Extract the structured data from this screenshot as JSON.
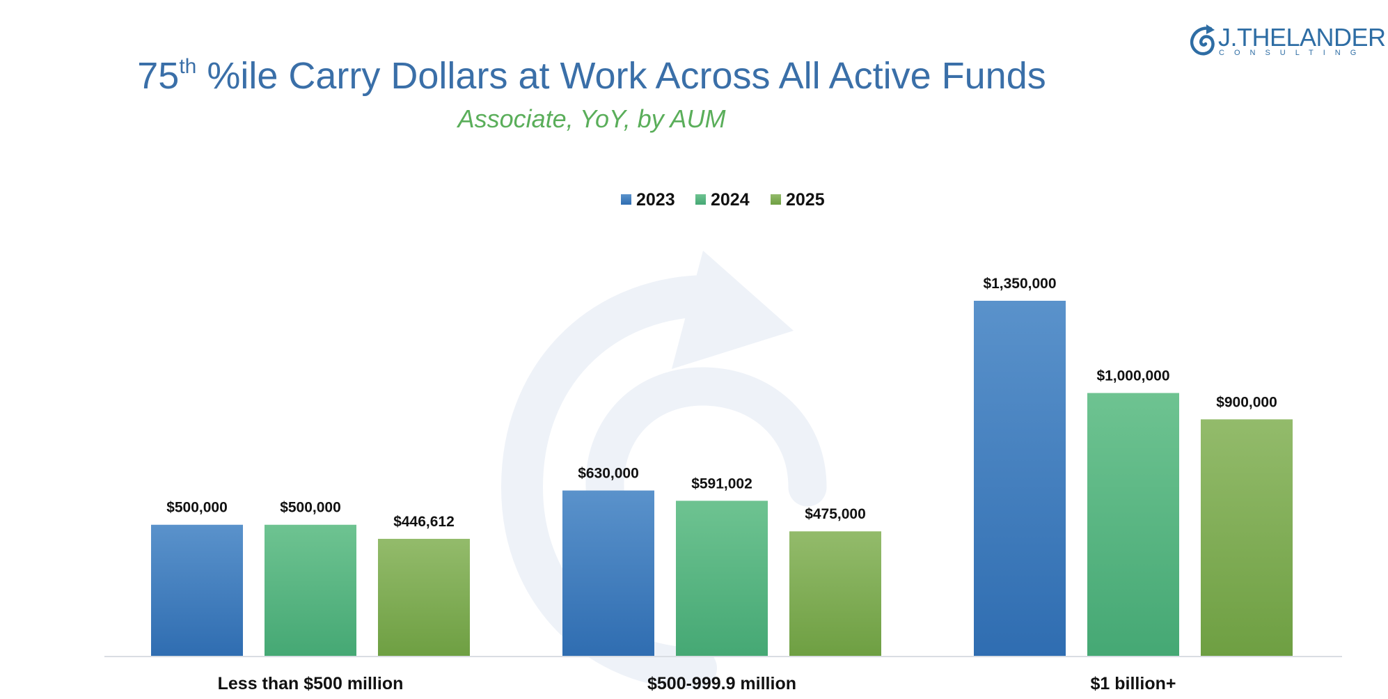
{
  "brand": {
    "name": "J.THELANDER",
    "tagline": "CONSULTING",
    "color": "#2E6DA4"
  },
  "colors": {
    "title": "#3A6FA8",
    "subtitle": "#5AAE5A",
    "series": [
      "#3A79BC",
      "#4DB57C",
      "#7BAA4E"
    ],
    "axis": "#D9DDE3",
    "watermark": "#EEF2F7"
  },
  "chart_data": {
    "type": "bar",
    "title_main": "75",
    "title_sup": "th",
    "title_rest": " %ile Carry Dollars at Work Across All Active Funds",
    "subtitle": "Associate, YoY, by AUM",
    "xlabel": "",
    "ylabel": "",
    "legend_position": "top-center",
    "ylim": [
      0,
      1500000
    ],
    "categories": [
      "Less than $500 million",
      "$500-999.9 million",
      "$1 billion+"
    ],
    "series": [
      {
        "name": "2023",
        "values": [
          500000,
          630000,
          1350000
        ],
        "labels": [
          "$500,000",
          "$630,000",
          "$1,350,000"
        ]
      },
      {
        "name": "2024",
        "values": [
          500000,
          591002,
          1000000
        ],
        "labels": [
          "$500,000",
          "$591,002",
          "$1,000,000"
        ]
      },
      {
        "name": "2025",
        "values": [
          446612,
          475000,
          900000
        ],
        "labels": [
          "$446,612",
          "$475,000",
          "$900,000"
        ]
      }
    ],
    "grid": false
  }
}
